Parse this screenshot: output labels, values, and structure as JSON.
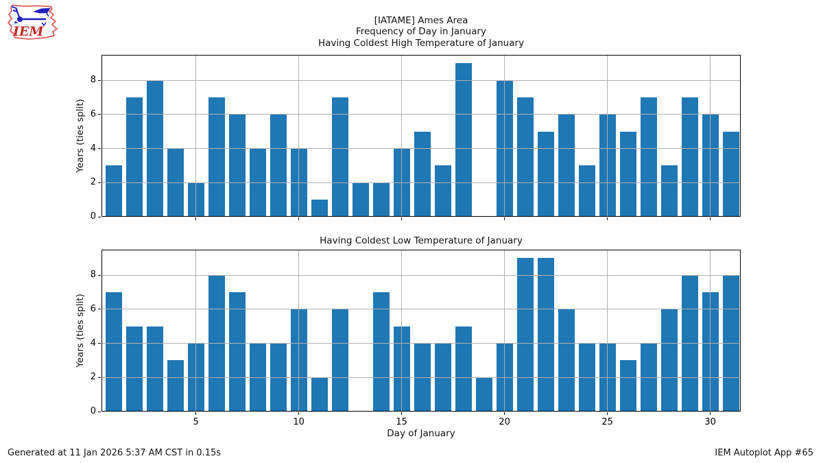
{
  "logo": {
    "icon": "iowa-state-outline-weather-vane-icon",
    "text": "IEM",
    "outline_color": "#e05c5c",
    "vane_color": "#2323bb",
    "text_color": "#c62828"
  },
  "header": {
    "line1": "[IATAME] Ames Area",
    "line2": "Frequency of Day in January"
  },
  "chart_data": [
    {
      "type": "bar",
      "title": "Having Coldest High Temperature of January",
      "categories": [
        1,
        2,
        3,
        4,
        5,
        6,
        7,
        8,
        9,
        10,
        11,
        12,
        13,
        14,
        15,
        16,
        17,
        18,
        19,
        20,
        21,
        22,
        23,
        24,
        25,
        26,
        27,
        28,
        29,
        30,
        31
      ],
      "values": [
        3,
        7,
        8,
        4,
        2,
        7,
        6,
        4,
        6,
        4,
        1,
        7,
        2,
        2,
        4,
        5,
        3,
        9,
        0,
        8,
        7,
        5,
        6,
        3,
        6,
        5,
        7,
        3,
        7,
        6,
        5
      ],
      "xlabel": "",
      "ylabel": "Years (ties split)",
      "xticks": [
        5,
        10,
        15,
        20,
        25,
        30
      ],
      "yticks": [
        0,
        2,
        4,
        6,
        8
      ],
      "xlim": [
        0.41,
        31.48
      ],
      "ylim": [
        0,
        9.5
      ],
      "grid": true,
      "grid_over_bars": true,
      "legend": "none",
      "bar_color": "#1f77b4",
      "grid_color": "#b0b0b0"
    },
    {
      "type": "bar",
      "title": "Having Coldest Low Temperature of January",
      "categories": [
        1,
        2,
        3,
        4,
        5,
        6,
        7,
        8,
        9,
        10,
        11,
        12,
        13,
        14,
        15,
        16,
        17,
        18,
        19,
        20,
        21,
        22,
        23,
        24,
        25,
        26,
        27,
        28,
        29,
        30,
        31
      ],
      "values": [
        7,
        5,
        5,
        3,
        4,
        8,
        7,
        4,
        4,
        6,
        2,
        6,
        0,
        7,
        5,
        4,
        4,
        5,
        2,
        4,
        9,
        9,
        6,
        4,
        4,
        3,
        4,
        6,
        8,
        7,
        8
      ],
      "xlabel": "Day of January",
      "ylabel": "Years (ties split)",
      "xticks": [
        5,
        10,
        15,
        20,
        25,
        30
      ],
      "yticks": [
        0,
        2,
        4,
        6,
        8
      ],
      "xlim": [
        0.41,
        31.48
      ],
      "ylim": [
        0,
        9.5
      ],
      "grid": true,
      "grid_over_bars": true,
      "legend": "none",
      "bar_color": "#1f77b4",
      "grid_color": "#b0b0b0"
    }
  ],
  "footer": {
    "left": "Generated at 11 Jan 2026 5:37 AM CST in 0.15s",
    "right": "IEM Autoplot App #65"
  }
}
